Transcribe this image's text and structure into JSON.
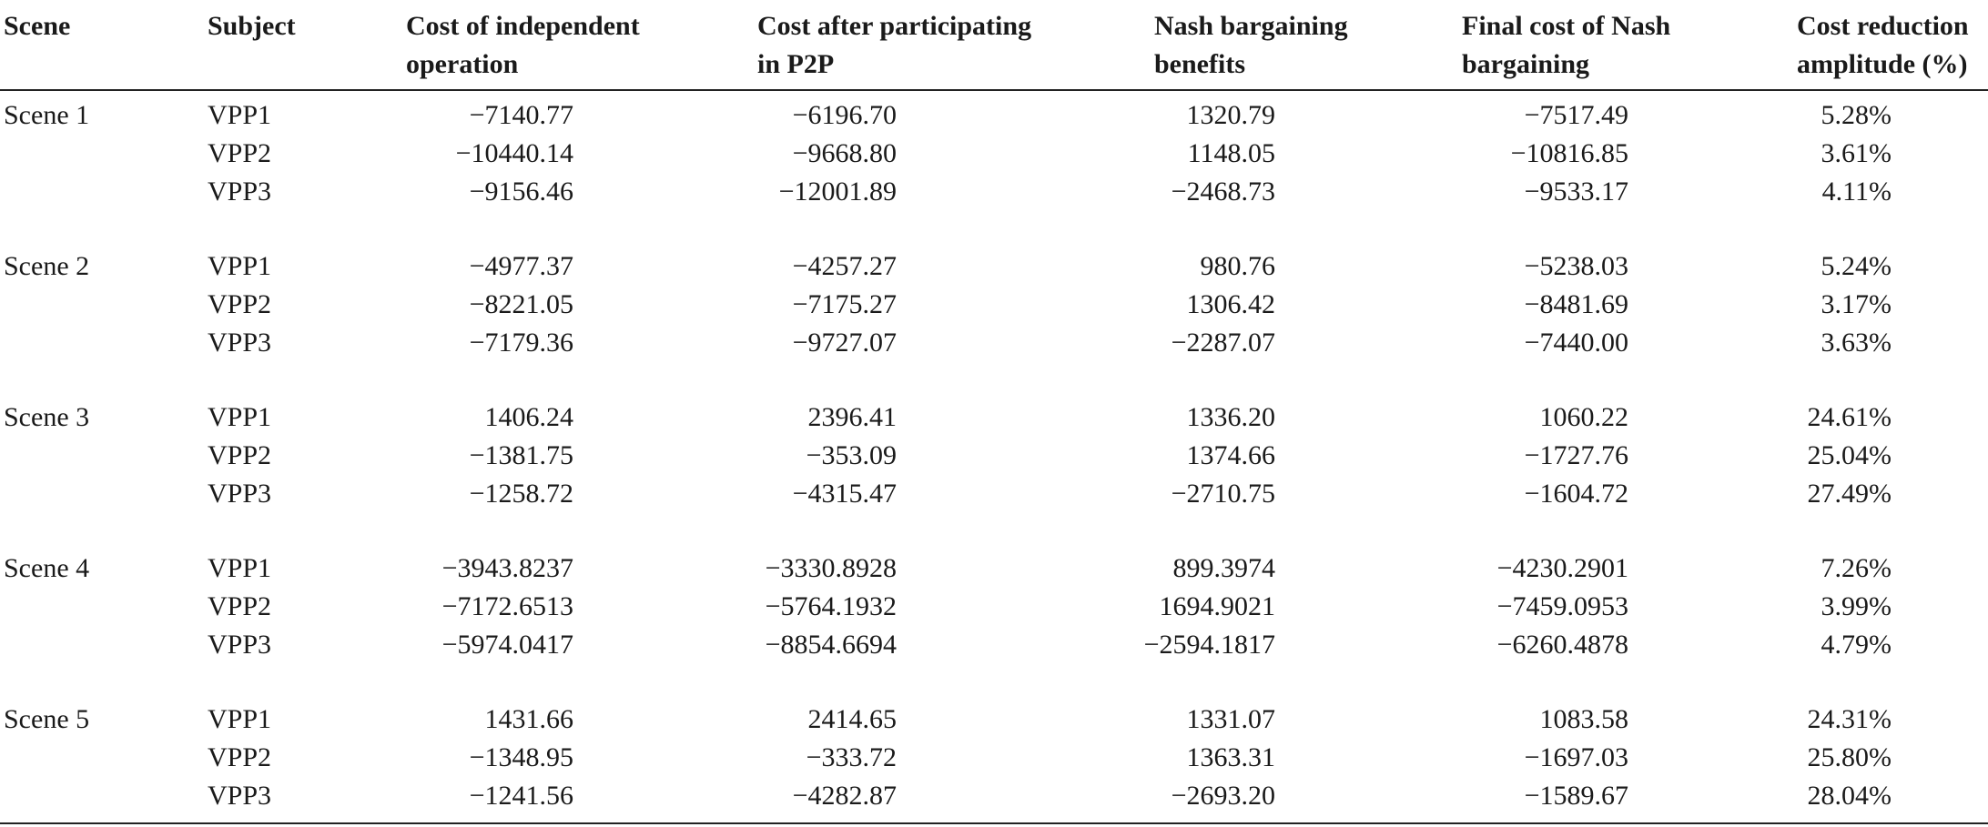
{
  "headers": [
    {
      "line1": "Scene",
      "line2": ""
    },
    {
      "line1": "Subject",
      "line2": ""
    },
    {
      "line1": "Cost of independent",
      "line2": "operation"
    },
    {
      "line1": "Cost after participating",
      "line2": "in P2P"
    },
    {
      "line1": "Nash bargaining",
      "line2": "benefits"
    },
    {
      "line1": "Final cost of Nash",
      "line2": "bargaining"
    },
    {
      "line1": "Cost reduction",
      "line2": "amplitude (%)"
    }
  ],
  "scenes": [
    {
      "name": "Scene 1",
      "rows": [
        {
          "subject": "VPP1",
          "independent": "−7140.77",
          "p2p": "−6196.70",
          "benefit": "1320.79",
          "final": "−7517.49",
          "reduction": "5.28%"
        },
        {
          "subject": "VPP2",
          "independent": "−10440.14",
          "p2p": "−9668.80",
          "benefit": "1148.05",
          "final": "−10816.85",
          "reduction": "3.61%"
        },
        {
          "subject": "VPP3",
          "independent": "−9156.46",
          "p2p": "−12001.89",
          "benefit": "−2468.73",
          "final": "−9533.17",
          "reduction": "4.11%"
        }
      ]
    },
    {
      "name": "Scene 2",
      "rows": [
        {
          "subject": "VPP1",
          "independent": "−4977.37",
          "p2p": "−4257.27",
          "benefit": "980.76",
          "final": "−5238.03",
          "reduction": "5.24%"
        },
        {
          "subject": "VPP2",
          "independent": "−8221.05",
          "p2p": "−7175.27",
          "benefit": "1306.42",
          "final": "−8481.69",
          "reduction": "3.17%"
        },
        {
          "subject": "VPP3",
          "independent": "−7179.36",
          "p2p": "−9727.07",
          "benefit": "−2287.07",
          "final": "−7440.00",
          "reduction": "3.63%"
        }
      ]
    },
    {
      "name": "Scene 3",
      "rows": [
        {
          "subject": "VPP1",
          "independent": "1406.24",
          "p2p": "2396.41",
          "benefit": "1336.20",
          "final": "1060.22",
          "reduction": "24.61%"
        },
        {
          "subject": "VPP2",
          "independent": "−1381.75",
          "p2p": "−353.09",
          "benefit": "1374.66",
          "final": "−1727.76",
          "reduction": "25.04%"
        },
        {
          "subject": "VPP3",
          "independent": "−1258.72",
          "p2p": "−4315.47",
          "benefit": "−2710.75",
          "final": "−1604.72",
          "reduction": "27.49%"
        }
      ]
    },
    {
      "name": "Scene 4",
      "rows": [
        {
          "subject": "VPP1",
          "independent": "−3943.8237",
          "p2p": "−3330.8928",
          "benefit": "899.3974",
          "final": "−4230.2901",
          "reduction": "7.26%"
        },
        {
          "subject": "VPP2",
          "independent": "−7172.6513",
          "p2p": "−5764.1932",
          "benefit": "1694.9021",
          "final": "−7459.0953",
          "reduction": "3.99%"
        },
        {
          "subject": "VPP3",
          "independent": "−5974.0417",
          "p2p": "−8854.6694",
          "benefit": "−2594.1817",
          "final": "−6260.4878",
          "reduction": "4.79%"
        }
      ]
    },
    {
      "name": "Scene 5",
      "rows": [
        {
          "subject": "VPP1",
          "independent": "1431.66",
          "p2p": "2414.65",
          "benefit": "1331.07",
          "final": "1083.58",
          "reduction": "24.31%"
        },
        {
          "subject": "VPP2",
          "independent": "−1348.95",
          "p2p": "−333.72",
          "benefit": "1363.31",
          "final": "−1697.03",
          "reduction": "25.80%"
        },
        {
          "subject": "VPP3",
          "independent": "−1241.56",
          "p2p": "−4282.87",
          "benefit": "−2693.20",
          "final": "−1589.67",
          "reduction": "28.04%"
        }
      ]
    }
  ]
}
